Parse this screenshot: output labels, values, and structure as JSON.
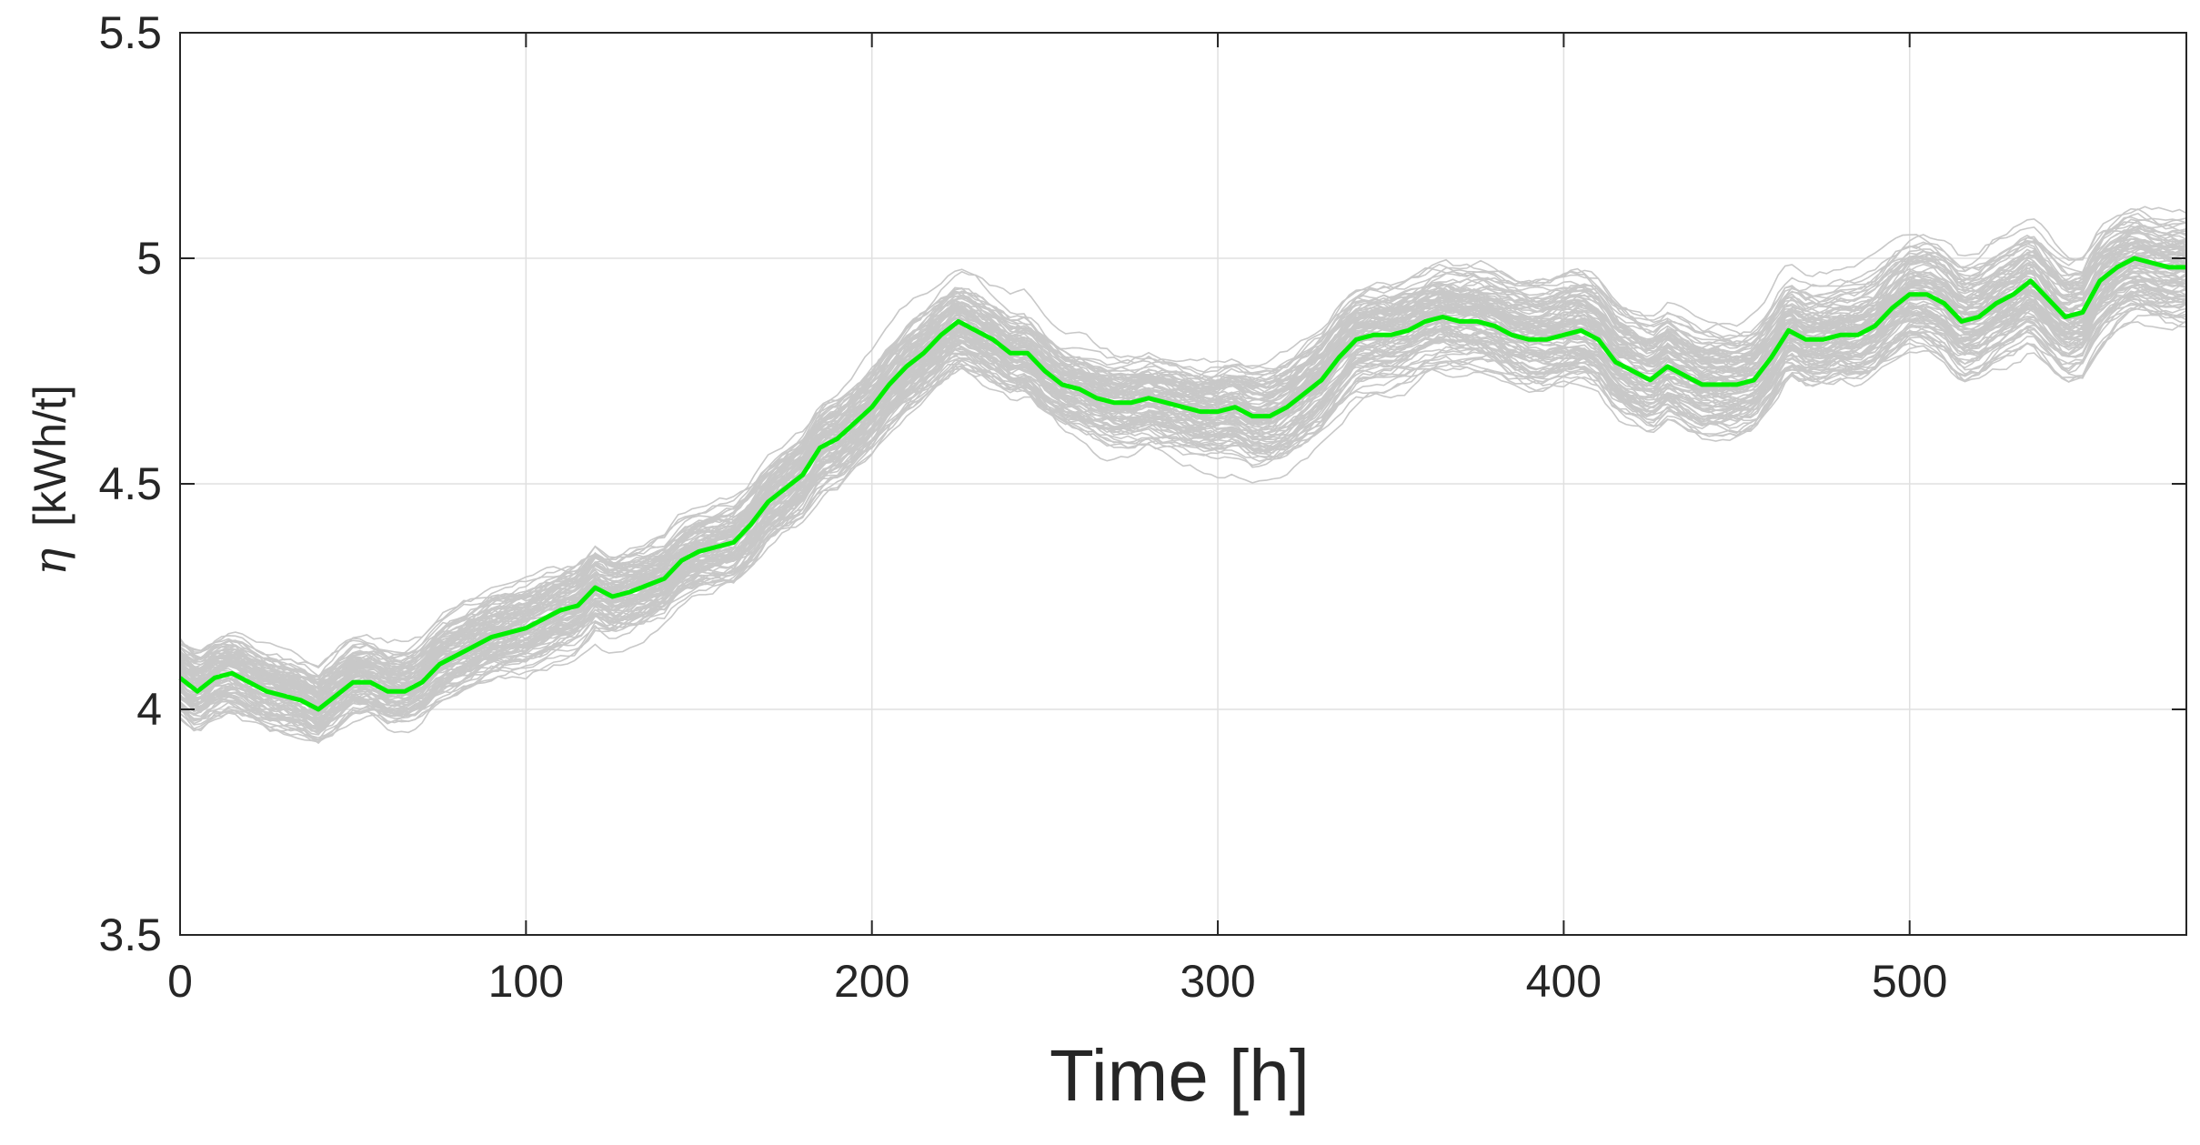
{
  "chart_data": {
    "type": "line",
    "title": "",
    "xlabel": "Time [h]",
    "ylabel_symbol": "η",
    "ylabel_unit": "[kWh/t]",
    "xlim": [
      0,
      580
    ],
    "ylim": [
      3.5,
      5.5
    ],
    "xticks": [
      "0",
      "100",
      "200",
      "300",
      "400",
      "500"
    ],
    "xtick_values": [
      0,
      100,
      200,
      300,
      400,
      500
    ],
    "yticks": [
      "3.5",
      "4",
      "4.5",
      "5",
      "5.5"
    ],
    "ytick_values": [
      3.5,
      4,
      4.5,
      5,
      5.5
    ],
    "grid": true,
    "colors": {
      "mean": "#00ee00",
      "ensemble": "#c8c8c8",
      "grid": "#e0e0e0",
      "axis": "#262626"
    },
    "ensemble": {
      "count": 100,
      "spread": 0.11
    },
    "series": [
      {
        "x": [
          0,
          5,
          10,
          15,
          20,
          25,
          30,
          35,
          40,
          45,
          50,
          55,
          60,
          65,
          70,
          75,
          80,
          90,
          100,
          110,
          115,
          120,
          125,
          130,
          140,
          145,
          150,
          160,
          165,
          170,
          180,
          185,
          190,
          200,
          205,
          210,
          215,
          220,
          225,
          230,
          235,
          240,
          245,
          250,
          255,
          260,
          265,
          270,
          275,
          280,
          285,
          290,
          295,
          300,
          305,
          310,
          315,
          320,
          325,
          330,
          335,
          340,
          345,
          350,
          355,
          360,
          365,
          370,
          375,
          380,
          385,
          390,
          395,
          400,
          405,
          410,
          415,
          420,
          425,
          430,
          435,
          440,
          445,
          450,
          455,
          460,
          465,
          470,
          475,
          480,
          485,
          490,
          495,
          500,
          505,
          510,
          515,
          520,
          525,
          530,
          535,
          540,
          545,
          550,
          555,
          560,
          565,
          570,
          575,
          580
        ],
        "values": [
          4.07,
          4.04,
          4.07,
          4.08,
          4.06,
          4.04,
          4.03,
          4.02,
          4.0,
          4.03,
          4.06,
          4.06,
          4.04,
          4.04,
          4.06,
          4.1,
          4.12,
          4.16,
          4.18,
          4.22,
          4.23,
          4.27,
          4.25,
          4.26,
          4.29,
          4.33,
          4.35,
          4.37,
          4.41,
          4.46,
          4.52,
          4.58,
          4.6,
          4.67,
          4.72,
          4.76,
          4.79,
          4.83,
          4.86,
          4.84,
          4.82,
          4.79,
          4.79,
          4.75,
          4.72,
          4.71,
          4.69,
          4.68,
          4.68,
          4.69,
          4.68,
          4.67,
          4.66,
          4.66,
          4.67,
          4.65,
          4.65,
          4.67,
          4.7,
          4.73,
          4.78,
          4.82,
          4.83,
          4.83,
          4.84,
          4.86,
          4.87,
          4.86,
          4.86,
          4.85,
          4.83,
          4.82,
          4.82,
          4.83,
          4.84,
          4.82,
          4.77,
          4.75,
          4.73,
          4.76,
          4.74,
          4.72,
          4.72,
          4.72,
          4.73,
          4.78,
          4.84,
          4.82,
          4.82,
          4.83,
          4.83,
          4.85,
          4.89,
          4.92,
          4.92,
          4.9,
          4.86,
          4.87,
          4.9,
          4.92,
          4.95,
          4.91,
          4.87,
          4.88,
          4.95,
          4.98,
          5.0,
          4.99,
          4.98,
          4.98
        ]
      }
    ]
  }
}
